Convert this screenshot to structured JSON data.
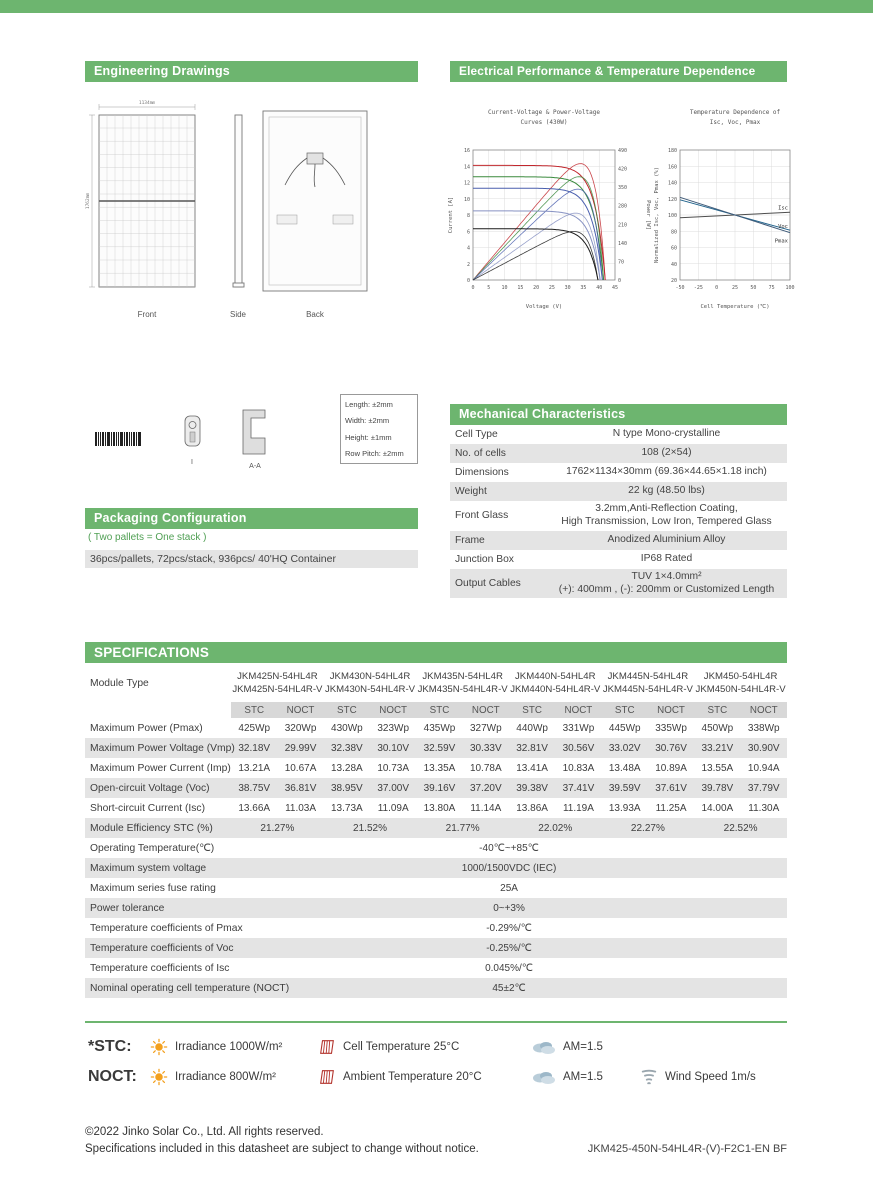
{
  "colors": {
    "accent": "#6db56f",
    "shade": "#e4e4e4",
    "subhead_shade": "#d8d8d8",
    "green_text": "#4f9f53"
  },
  "sections": {
    "engineering": {
      "title": "Engineering Drawings",
      "views": [
        "Front",
        "Side",
        "Back"
      ],
      "dim_width": "1134mm",
      "dim_height": "1762mm",
      "detail_labels": [
        "I",
        "A-A"
      ],
      "tolerances": [
        "Length: ±2mm",
        "Width: ±2mm",
        "Height: ±1mm",
        "Row Pitch: ±2mm"
      ]
    },
    "electrical": {
      "title": "Electrical Performance & Temperature Dependence"
    },
    "mechanical": {
      "title": "Mechanical Characteristics",
      "rows": [
        {
          "label": "Cell Type",
          "value": "N type Mono-crystalline"
        },
        {
          "label": "No. of cells",
          "value": "108 (2×54)"
        },
        {
          "label": "Dimensions",
          "value": "1762×1134×30mm (69.36×44.65×1.18 inch)"
        },
        {
          "label": "Weight",
          "value": "22 kg (48.50 lbs)"
        },
        {
          "label": "Front Glass",
          "value": "3.2mm,Anti-Reflection Coating,\nHigh Transmission, Low Iron, Tempered Glass"
        },
        {
          "label": "Frame",
          "value": "Anodized Aluminium Alloy"
        },
        {
          "label": "Junction Box",
          "value": "IP68 Rated"
        },
        {
          "label": "Output Cables",
          "value": "TUV 1×4.0mm²\n(+): 400mm , (-): 200mm or Customized Length"
        }
      ]
    },
    "packaging": {
      "title": "Packaging Configuration",
      "note": "( Two pallets = One stack )",
      "detail": "36pcs/pallets, 72pcs/stack, 936pcs/ 40'HQ Container"
    },
    "specifications": {
      "title": "SPECIFICATIONS",
      "module_type_label": "Module Type",
      "modules": [
        {
          "line1": "JKM425N-54HL4R",
          "line2": "JKM425N-54HL4R-V"
        },
        {
          "line1": "JKM430N-54HL4R",
          "line2": "JKM430N-54HL4R-V"
        },
        {
          "line1": "JKM435N-54HL4R",
          "line2": "JKM435N-54HL4R-V"
        },
        {
          "line1": "JKM440N-54HL4R",
          "line2": "JKM440N-54HL4R-V"
        },
        {
          "line1": "JKM445N-54HL4R",
          "line2": "JKM445N-54HL4R-V"
        },
        {
          "line1": "JKM450-54HL4R",
          "line2": "JKM450N-54HL4R-V"
        }
      ],
      "col_headers": [
        "STC",
        "NOCT"
      ],
      "electrical_rows": [
        {
          "label": "Maximum Power (Pmax)",
          "stc": [
            "425Wp",
            "430Wp",
            "435Wp",
            "440Wp",
            "445Wp",
            "450Wp"
          ],
          "noct": [
            "320Wp",
            "323Wp",
            "327Wp",
            "331Wp",
            "335Wp",
            "338Wp"
          ]
        },
        {
          "label": "Maximum Power Voltage (Vmp)",
          "stc": [
            "32.18V",
            "32.38V",
            "32.59V",
            "32.81V",
            "33.02V",
            "33.21V"
          ],
          "noct": [
            "29.99V",
            "30.10V",
            "30.33V",
            "30.56V",
            "30.76V",
            "30.90V"
          ]
        },
        {
          "label": "Maximum Power Current (Imp)",
          "stc": [
            "13.21A",
            "13.28A",
            "13.35A",
            "13.41A",
            "13.48A",
            "13.55A"
          ],
          "noct": [
            "10.67A",
            "10.73A",
            "10.78A",
            "10.83A",
            "10.89A",
            "10.94A"
          ]
        },
        {
          "label": "Open-circuit Voltage (Voc)",
          "stc": [
            "38.75V",
            "38.95V",
            "39.16V",
            "39.38V",
            "39.59V",
            "39.78V"
          ],
          "noct": [
            "36.81V",
            "37.00V",
            "37.20V",
            "37.41V",
            "37.61V",
            "37.79V"
          ]
        },
        {
          "label": "Short-circuit Current (Isc)",
          "stc": [
            "13.66A",
            "13.73A",
            "13.80A",
            "13.86A",
            "13.93A",
            "14.00A"
          ],
          "noct": [
            "11.03A",
            "11.09A",
            "11.14A",
            "11.19A",
            "11.25A",
            "11.30A"
          ]
        }
      ],
      "efficiency_row": {
        "label": "Module Efficiency STC (%)",
        "values": [
          "21.27%",
          "21.52%",
          "21.77%",
          "22.02%",
          "22.27%",
          "22.52%"
        ]
      },
      "merged_rows": [
        {
          "label": "Operating Temperature(℃)",
          "value": "-40℃~+85℃"
        },
        {
          "label": "Maximum system voltage",
          "value": "1000/1500VDC (IEC)"
        },
        {
          "label": "Maximum series fuse rating",
          "value": "25A"
        },
        {
          "label": "Power tolerance",
          "value": "0~+3%"
        },
        {
          "label": "Temperature coefficients of Pmax",
          "value": "-0.29%/℃"
        },
        {
          "label": "Temperature coefficients of Voc",
          "value": "-0.25%/℃"
        },
        {
          "label": "Temperature coefficients of Isc",
          "value": "0.045%/℃"
        },
        {
          "label": "Nominal operating cell temperature  (NOCT)",
          "value": "45±2℃"
        }
      ]
    }
  },
  "chart_data": [
    {
      "type": "line",
      "title": "Current-Voltage & Power-Voltage\nCurves (430W)",
      "xlabel": "Voltage (V)",
      "ylabel_left": "Current [A]",
      "ylabel_right": "Power [W]",
      "xlim": [
        0,
        45
      ],
      "ylim_left": [
        0,
        16
      ],
      "ylim_right": [
        0,
        490
      ],
      "x_ticks": [
        0,
        5,
        10,
        15,
        20,
        25,
        30,
        35,
        40,
        45
      ],
      "y_left_ticks": [
        0,
        2,
        4,
        6,
        8,
        10,
        12,
        14,
        16
      ],
      "y_right_ticks": [
        0,
        70,
        140,
        210,
        280,
        350,
        420,
        490
      ],
      "grid": true,
      "iv_series": [
        {
          "isc": 14.1,
          "voc": 41.9,
          "color": "#c1272d"
        },
        {
          "isc": 12.7,
          "voc": 41.4,
          "color": "#3a8a3c"
        },
        {
          "isc": 11.3,
          "voc": 41.0,
          "color": "#4a5fae"
        },
        {
          "isc": 8.5,
          "voc": 40.3,
          "color": "#8691c2"
        },
        {
          "isc": 6.3,
          "voc": 39.6,
          "color": "#1a1a1a"
        }
      ]
    },
    {
      "type": "line",
      "title": "Temperature Dependence of\nIsc, Voc, Pmax",
      "xlabel": "Cell Temperature (℃)",
      "ylabel": "Normalized Isc, Voc, Pmax (%)",
      "xlim": [
        -50,
        100
      ],
      "ylim": [
        20,
        180
      ],
      "x_ticks": [
        -50,
        -25,
        0,
        25,
        50,
        75,
        100
      ],
      "y_ticks": [
        20,
        40,
        60,
        80,
        100,
        120,
        140,
        160,
        180
      ],
      "grid": true,
      "normalized_at": {
        "x": 25,
        "y": 100
      },
      "series": [
        {
          "name": "Isc",
          "slope_pct_per_C": 0.045,
          "color": "#4d4d4d"
        },
        {
          "name": "Voc",
          "slope_pct_per_C": -0.25,
          "color": "#20638c"
        },
        {
          "name": "Pmax",
          "slope_pct_per_C": -0.29,
          "color": "#3f5a78"
        }
      ]
    }
  ],
  "legend": {
    "stc": {
      "label": "*STC:",
      "items": [
        {
          "icon": "sun",
          "text": "Irradiance 1000W/m²"
        },
        {
          "icon": "cell-temp",
          "text": "Cell Temperature 25°C"
        },
        {
          "icon": "cloud",
          "text": "AM=1.5"
        }
      ]
    },
    "noct": {
      "label": "NOCT:",
      "items": [
        {
          "icon": "sun",
          "text": "Irradiance 800W/m²"
        },
        {
          "icon": "cell-temp",
          "text": "Ambient Temperature 20°C"
        },
        {
          "icon": "cloud",
          "text": "AM=1.5"
        },
        {
          "icon": "wind",
          "text": "Wind Speed 1m/s"
        }
      ]
    }
  },
  "footer": {
    "copyright": "©2022 Jinko Solar Co., Ltd. All rights reserved.",
    "notice": "Specifications included in this datasheet are subject to change without notice.",
    "doc_code": "JKM425-450N-54HL4R-(V)-F2C1-EN BF"
  }
}
